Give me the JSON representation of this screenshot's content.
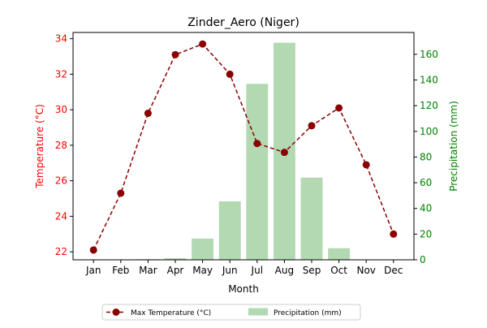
{
  "chart_data": {
    "type": "bar+line",
    "title": "Zinder_Aero (Niger)",
    "xlabel": "Month",
    "categories": [
      "Jan",
      "Feb",
      "Mar",
      "Apr",
      "May",
      "Jun",
      "Jul",
      "Aug",
      "Sep",
      "Oct",
      "Nov",
      "Dec"
    ],
    "left_axis": {
      "label": "Temperature (°C)",
      "ylim": [
        21.55,
        34.35
      ],
      "ticks": [
        22,
        24,
        26,
        28,
        30,
        32,
        34
      ],
      "color": "#ff0000"
    },
    "right_axis": {
      "label": "Precipitation (mm)",
      "ylim": [
        0,
        177
      ],
      "ticks": [
        0,
        20,
        40,
        60,
        80,
        100,
        120,
        140,
        160
      ],
      "color": "#008000"
    },
    "series": [
      {
        "name": "Max Temperature (°C)",
        "type": "line",
        "axis": "left",
        "color": "#8b0000",
        "values": [
          22.1,
          25.3,
          29.8,
          33.1,
          33.7,
          32.0,
          28.1,
          27.6,
          29.1,
          30.1,
          26.9,
          23.0
        ]
      },
      {
        "name": "Precipitation (mm)",
        "type": "bar",
        "axis": "right",
        "color": "#b2d9b2",
        "values": [
          0,
          0,
          0.5,
          1.2,
          16.5,
          45.5,
          137,
          169,
          64,
          9,
          0,
          0
        ]
      }
    ],
    "legend": "bottom-center",
    "grid": false
  }
}
